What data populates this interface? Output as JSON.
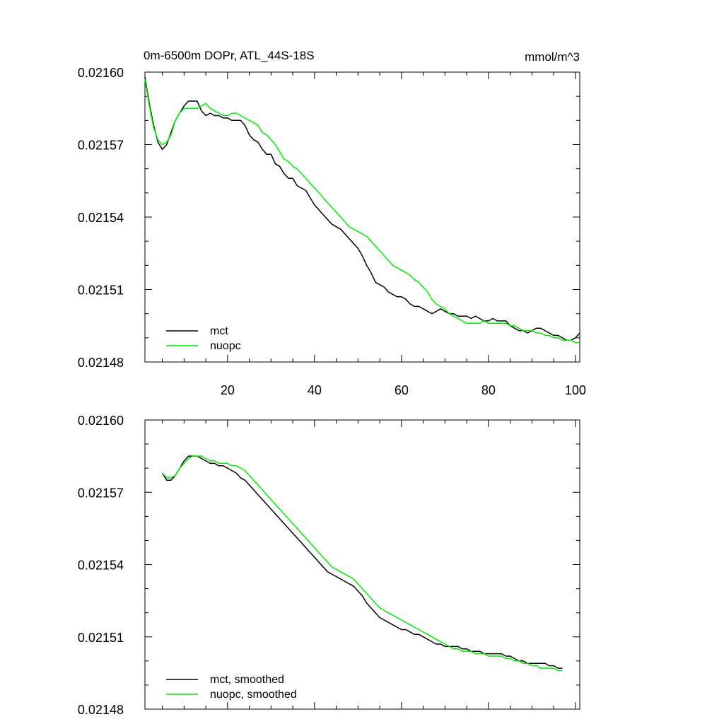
{
  "chart_data": [
    {
      "type": "line",
      "title": "0m-6500m DOPr, ATL_44S-18S",
      "units": "mmol/m^3",
      "xlim": [
        1,
        101
      ],
      "ylim": [
        0.02148,
        0.0216
      ],
      "x_ticks": [
        20,
        40,
        60,
        80,
        100
      ],
      "x_tick_labels": [
        "20",
        "40",
        "60",
        "80",
        "100"
      ],
      "y_ticks": [
        0.02148,
        0.02151,
        0.02154,
        0.02157,
        0.0216
      ],
      "y_tick_labels": [
        "0.02148",
        "0.02151",
        "0.02154",
        "0.02157",
        "0.02160"
      ],
      "grid": false,
      "legend_position": "bottom-left",
      "series": [
        {
          "name": "mct",
          "color": "#000000",
          "x": [
            1,
            2,
            3,
            4,
            5,
            6,
            7,
            8,
            9,
            10,
            11,
            12,
            13,
            14,
            15,
            16,
            17,
            18,
            19,
            20,
            21,
            22,
            23,
            24,
            25,
            26,
            27,
            28,
            29,
            30,
            31,
            32,
            33,
            34,
            35,
            36,
            37,
            38,
            39,
            40,
            41,
            42,
            43,
            44,
            45,
            46,
            47,
            48,
            49,
            50,
            51,
            52,
            53,
            54,
            55,
            56,
            57,
            58,
            59,
            60,
            61,
            62,
            63,
            64,
            65,
            66,
            67,
            68,
            69,
            70,
            71,
            72,
            73,
            74,
            75,
            76,
            77,
            78,
            79,
            80,
            81,
            82,
            83,
            84,
            85,
            86,
            87,
            88,
            89,
            90,
            91,
            92,
            93,
            94,
            95,
            96,
            97,
            98,
            99,
            100,
            101
          ],
          "values": [
            0.021598,
            0.021587,
            0.021578,
            0.021571,
            0.021568,
            0.02157,
            0.021575,
            0.02158,
            0.021583,
            0.021586,
            0.021588,
            0.021588,
            0.021588,
            0.021584,
            0.021582,
            0.021583,
            0.021582,
            0.021582,
            0.021581,
            0.021581,
            0.02158,
            0.02158,
            0.02158,
            0.021578,
            0.021574,
            0.021572,
            0.021571,
            0.021568,
            0.021566,
            0.021566,
            0.021562,
            0.021561,
            0.021558,
            0.021556,
            0.021556,
            0.021553,
            0.021552,
            0.021551,
            0.021548,
            0.021545,
            0.021543,
            0.021541,
            0.021539,
            0.021537,
            0.021536,
            0.021535,
            0.021533,
            0.021531,
            0.021529,
            0.021527,
            0.021524,
            0.02152,
            0.021517,
            0.021513,
            0.021512,
            0.021511,
            0.021509,
            0.021508,
            0.021507,
            0.021507,
            0.021506,
            0.021504,
            0.021503,
            0.021503,
            0.021502,
            0.021501,
            0.0215,
            0.021501,
            0.021502,
            0.021501,
            0.0215,
            0.0215,
            0.021499,
            0.021499,
            0.021499,
            0.021498,
            0.021499,
            0.021498,
            0.021497,
            0.021497,
            0.021498,
            0.021497,
            0.021497,
            0.021497,
            0.021495,
            0.021494,
            0.021493,
            0.021493,
            0.021492,
            0.021493,
            0.021494,
            0.021494,
            0.021493,
            0.021492,
            0.021491,
            0.021491,
            0.02149,
            0.021489,
            0.021489,
            0.02149,
            0.021492
          ]
        },
        {
          "name": "nuopc",
          "color": "#00ee00",
          "x": [
            1,
            2,
            3,
            4,
            5,
            6,
            7,
            8,
            9,
            10,
            11,
            12,
            13,
            14,
            15,
            16,
            17,
            18,
            19,
            20,
            21,
            22,
            23,
            24,
            25,
            26,
            27,
            28,
            29,
            30,
            31,
            32,
            33,
            34,
            35,
            36,
            37,
            38,
            39,
            40,
            41,
            42,
            43,
            44,
            45,
            46,
            47,
            48,
            49,
            50,
            51,
            52,
            53,
            54,
            55,
            56,
            57,
            58,
            59,
            60,
            61,
            62,
            63,
            64,
            65,
            66,
            67,
            68,
            69,
            70,
            71,
            72,
            73,
            74,
            75,
            76,
            77,
            78,
            79,
            80,
            81,
            82,
            83,
            84,
            85,
            86,
            87,
            88,
            89,
            90,
            91,
            92,
            93,
            94,
            95,
            96,
            97,
            98,
            99,
            100,
            101
          ],
          "values": [
            0.021597,
            0.021586,
            0.021577,
            0.021572,
            0.02157,
            0.021571,
            0.021574,
            0.02158,
            0.021583,
            0.021585,
            0.021585,
            0.021585,
            0.021585,
            0.021586,
            0.021587,
            0.021585,
            0.021584,
            0.021583,
            0.021582,
            0.021582,
            0.021583,
            0.021583,
            0.021582,
            0.021581,
            0.02158,
            0.021579,
            0.021578,
            0.021575,
            0.021574,
            0.021572,
            0.02157,
            0.021567,
            0.021564,
            0.021563,
            0.021561,
            0.02156,
            0.021558,
            0.021556,
            0.021554,
            0.021552,
            0.02155,
            0.021548,
            0.021546,
            0.021544,
            0.021542,
            0.02154,
            0.021538,
            0.021536,
            0.021535,
            0.021534,
            0.021533,
            0.021532,
            0.02153,
            0.021528,
            0.021526,
            0.021524,
            0.021522,
            0.02152,
            0.021519,
            0.021518,
            0.021517,
            0.021516,
            0.021514,
            0.021513,
            0.021511,
            0.021509,
            0.021506,
            0.021504,
            0.021503,
            0.021502,
            0.0215,
            0.021499,
            0.021498,
            0.021497,
            0.021496,
            0.021496,
            0.021496,
            0.021496,
            0.021497,
            0.021496,
            0.021496,
            0.021496,
            0.021496,
            0.021496,
            0.021495,
            0.021495,
            0.021494,
            0.021493,
            0.021493,
            0.021493,
            0.021492,
            0.021492,
            0.021491,
            0.021491,
            0.02149,
            0.02149,
            0.021489,
            0.021489,
            0.021489,
            0.021488,
            0.021488
          ]
        }
      ]
    },
    {
      "type": "line",
      "title": "",
      "units": "",
      "xlim": [
        1,
        101
      ],
      "ylim": [
        0.02148,
        0.0216
      ],
      "x_ticks": [
        20,
        40,
        60,
        80,
        100
      ],
      "x_tick_labels": [],
      "y_ticks": [
        0.02148,
        0.02151,
        0.02154,
        0.02157,
        0.0216
      ],
      "y_tick_labels": [
        "0.02148",
        "0.02151",
        "0.02154",
        "0.02157",
        "0.02160"
      ],
      "grid": false,
      "legend_position": "bottom-left",
      "series": [
        {
          "name": "mct, smoothed",
          "color": "#000000",
          "x": [
            5,
            6,
            7,
            8,
            9,
            10,
            11,
            12,
            13,
            14,
            15,
            16,
            17,
            18,
            19,
            20,
            21,
            22,
            23,
            24,
            25,
            26,
            27,
            28,
            29,
            30,
            31,
            32,
            33,
            34,
            35,
            36,
            37,
            38,
            39,
            40,
            41,
            42,
            43,
            44,
            45,
            46,
            47,
            48,
            49,
            50,
            51,
            52,
            53,
            54,
            55,
            56,
            57,
            58,
            59,
            60,
            61,
            62,
            63,
            64,
            65,
            66,
            67,
            68,
            69,
            70,
            71,
            72,
            73,
            74,
            75,
            76,
            77,
            78,
            79,
            80,
            81,
            82,
            83,
            84,
            85,
            86,
            87,
            88,
            89,
            90,
            91,
            92,
            93,
            94,
            95,
            96,
            97
          ],
          "values": [
            0.021578,
            0.021575,
            0.021575,
            0.021577,
            0.02158,
            0.021583,
            0.021585,
            0.021585,
            0.021585,
            0.021584,
            0.021583,
            0.021582,
            0.021582,
            0.021581,
            0.021581,
            0.02158,
            0.021579,
            0.021578,
            0.021576,
            0.021575,
            0.021573,
            0.021571,
            0.021569,
            0.021567,
            0.021565,
            0.021563,
            0.021561,
            0.021559,
            0.021557,
            0.021555,
            0.021553,
            0.021551,
            0.021549,
            0.021547,
            0.021545,
            0.021543,
            0.021541,
            0.021539,
            0.021537,
            0.021536,
            0.021535,
            0.021534,
            0.021533,
            0.021532,
            0.021531,
            0.021529,
            0.021527,
            0.021524,
            0.021522,
            0.02152,
            0.021518,
            0.021517,
            0.021516,
            0.021515,
            0.021514,
            0.021513,
            0.021513,
            0.021512,
            0.021511,
            0.021511,
            0.02151,
            0.021509,
            0.021508,
            0.021507,
            0.021507,
            0.021506,
            0.021506,
            0.021506,
            0.021506,
            0.021505,
            0.021505,
            0.021504,
            0.021504,
            0.021504,
            0.021503,
            0.021503,
            0.021503,
            0.021503,
            0.021503,
            0.021502,
            0.021502,
            0.021501,
            0.0215,
            0.0215,
            0.021499,
            0.021499,
            0.021499,
            0.021499,
            0.021499,
            0.021498,
            0.021498,
            0.021497,
            0.021497
          ]
        },
        {
          "name": "nuopc, smoothed",
          "color": "#00ee00",
          "x": [
            5,
            6,
            7,
            8,
            9,
            10,
            11,
            12,
            13,
            14,
            15,
            16,
            17,
            18,
            19,
            20,
            21,
            22,
            23,
            24,
            25,
            26,
            27,
            28,
            29,
            30,
            31,
            32,
            33,
            34,
            35,
            36,
            37,
            38,
            39,
            40,
            41,
            42,
            43,
            44,
            45,
            46,
            47,
            48,
            49,
            50,
            51,
            52,
            53,
            54,
            55,
            56,
            57,
            58,
            59,
            60,
            61,
            62,
            63,
            64,
            65,
            66,
            67,
            68,
            69,
            70,
            71,
            72,
            73,
            74,
            75,
            76,
            77,
            78,
            79,
            80,
            81,
            82,
            83,
            84,
            85,
            86,
            87,
            88,
            89,
            90,
            91,
            92,
            93,
            94,
            95,
            96,
            97
          ],
          "values": [
            0.021578,
            0.021576,
            0.021576,
            0.021577,
            0.02158,
            0.021582,
            0.021584,
            0.021585,
            0.021585,
            0.021585,
            0.021584,
            0.021583,
            0.021583,
            0.021582,
            0.021582,
            0.021582,
            0.021581,
            0.021581,
            0.02158,
            0.021579,
            0.021577,
            0.021575,
            0.021573,
            0.021571,
            0.021569,
            0.021567,
            0.021565,
            0.021563,
            0.021561,
            0.021559,
            0.021557,
            0.021555,
            0.021553,
            0.021551,
            0.021549,
            0.021547,
            0.021545,
            0.021543,
            0.021541,
            0.021539,
            0.021538,
            0.021537,
            0.021536,
            0.021535,
            0.021534,
            0.021532,
            0.02153,
            0.021528,
            0.021526,
            0.021524,
            0.021522,
            0.021521,
            0.02152,
            0.021519,
            0.021518,
            0.021517,
            0.021516,
            0.021515,
            0.021514,
            0.021513,
            0.021512,
            0.021511,
            0.02151,
            0.021509,
            0.021508,
            0.021507,
            0.021506,
            0.021505,
            0.021505,
            0.021504,
            0.021504,
            0.021504,
            0.021503,
            0.021503,
            0.021503,
            0.021502,
            0.021502,
            0.021502,
            0.021502,
            0.021501,
            0.021501,
            0.0215,
            0.0215,
            0.021499,
            0.021499,
            0.021498,
            0.021498,
            0.021497,
            0.021497,
            0.021497,
            0.021497,
            0.021496,
            0.021496
          ]
        }
      ]
    }
  ]
}
